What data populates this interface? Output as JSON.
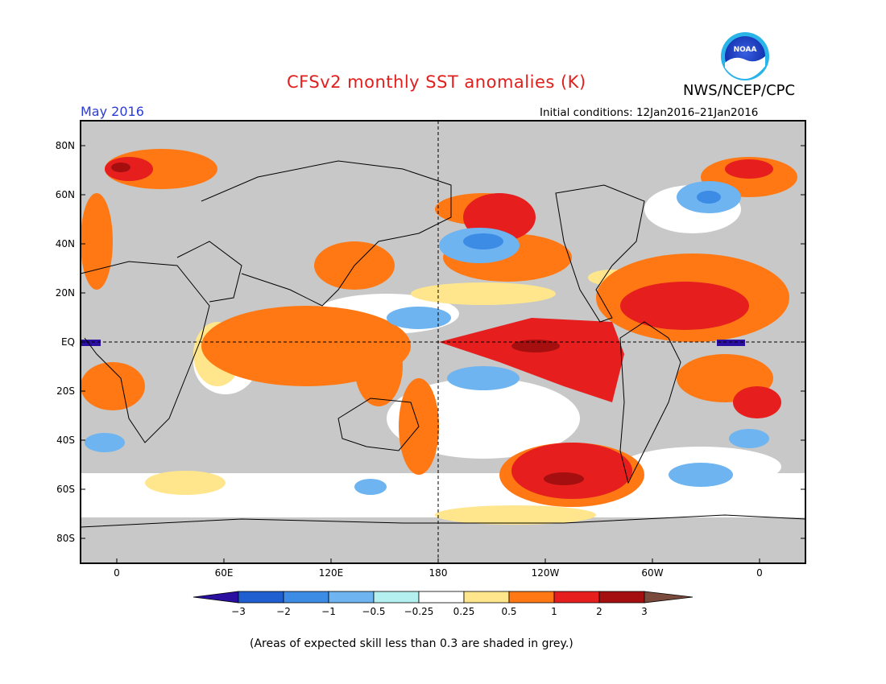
{
  "header": {
    "title": "CFSv2 monthly SST anomalies (K)",
    "month": "May 2016",
    "initial_conditions": "Initial conditions: 12Jan2016–21Jan2016",
    "agency": "NWS/NCEP/CPC",
    "logo_text": "NOAA"
  },
  "map": {
    "lat_labels": [
      "80N",
      "60N",
      "40N",
      "20N",
      "EQ",
      "20S",
      "40S",
      "60S",
      "80S"
    ],
    "lon_labels": [
      "0",
      "60E",
      "120E",
      "180",
      "120W",
      "60W",
      "0"
    ],
    "colors": {
      "land": "#c8c8c8",
      "frame": "#000000"
    }
  },
  "legend": {
    "labels": [
      "−3",
      "−2",
      "−1",
      "−0.5",
      "−0.25",
      "0.25",
      "0.5",
      "1",
      "2",
      "3"
    ],
    "colors": [
      "#2a0fa0",
      "#1f5fd0",
      "#3c8ce6",
      "#6eb4f0",
      "#b4f0f0",
      "#ffffff",
      "#ffe68c",
      "#ff7814",
      "#e61e1e",
      "#a50f0f",
      "#7a4a3c"
    ]
  },
  "footer": {
    "note": "(Areas of expected skill less than 0.3 are shaded in grey.)"
  }
}
